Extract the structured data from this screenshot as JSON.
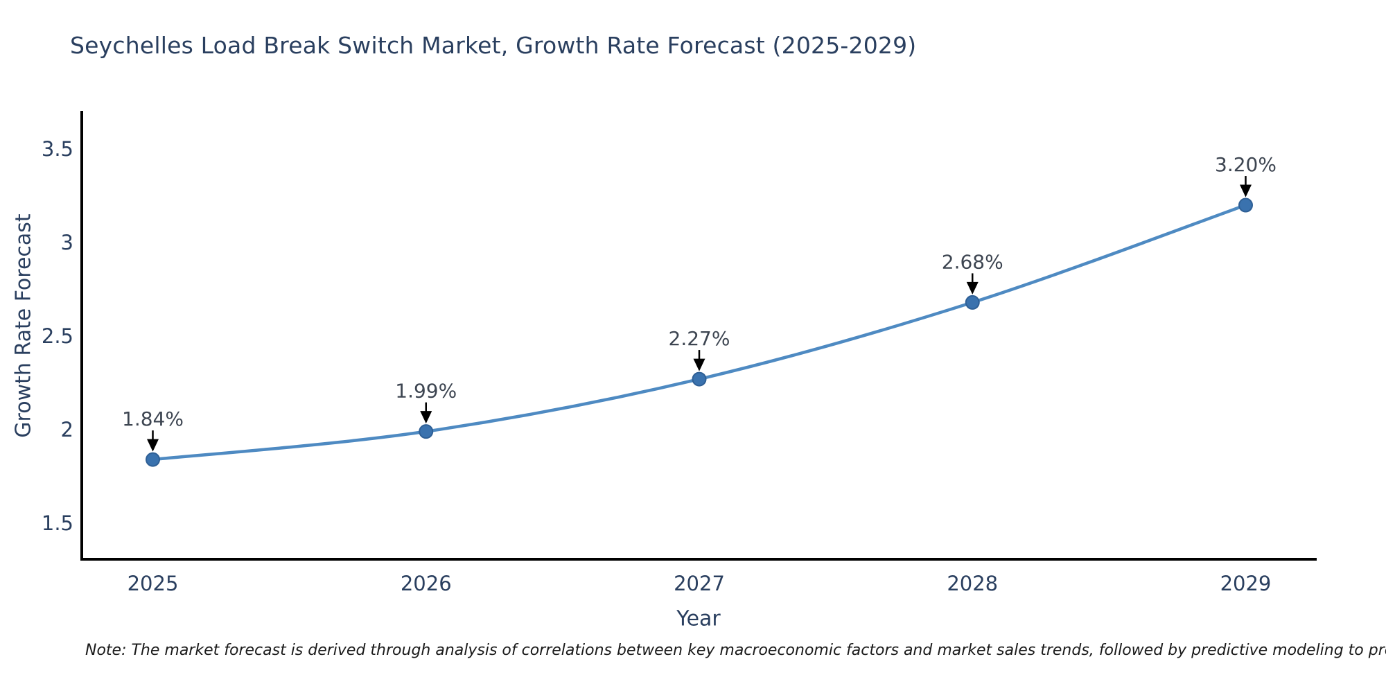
{
  "title": "Seychelles Load Break Switch Market, Growth Rate Forecast (2025-2029)",
  "note": "Note: The market forecast is derived through analysis of correlations between key macroeconomic factors and market sales trends, followed by predictive modeling to project future sales",
  "chart_data": {
    "type": "line",
    "title": "Seychelles Load Break Switch Market, Growth Rate Forecast (2025-2029)",
    "xlabel": "Year",
    "ylabel": "Growth Rate Forecast",
    "x": [
      2025,
      2026,
      2027,
      2028,
      2029
    ],
    "y": [
      1.84,
      1.99,
      2.27,
      2.68,
      3.2
    ],
    "point_labels": [
      "1.84%",
      "1.99%",
      "2.27%",
      "2.68%",
      "3.20%"
    ],
    "x_tick_labels": [
      "2025",
      "2026",
      "2027",
      "2028",
      "2029"
    ],
    "y_ticks": [
      1.5,
      2,
      2.5,
      3,
      3.5
    ],
    "y_tick_labels": [
      "1.5",
      "2",
      "2.5",
      "3",
      "3.5"
    ],
    "xlim": [
      2024.74,
      2029.26
    ],
    "ylim": [
      1.307,
      3.704
    ],
    "grid": false,
    "legend": "none",
    "line_shape": "spline",
    "marker": "circle",
    "annotation_arrows": "down-to-point",
    "colors": {
      "background": "#ffffff",
      "line": "#4e8ac2",
      "marker_fill": "#3a72ae",
      "marker_stroke": "#2e5f95",
      "axis_line": "#000000",
      "arrow": "#000000",
      "title_text": "#2a3f5f",
      "axis_title_text": "#2a3f5f",
      "tick_text": "#2a3f5f",
      "point_label_text": "#3d4551",
      "note_text": "#1a1a1a"
    }
  }
}
